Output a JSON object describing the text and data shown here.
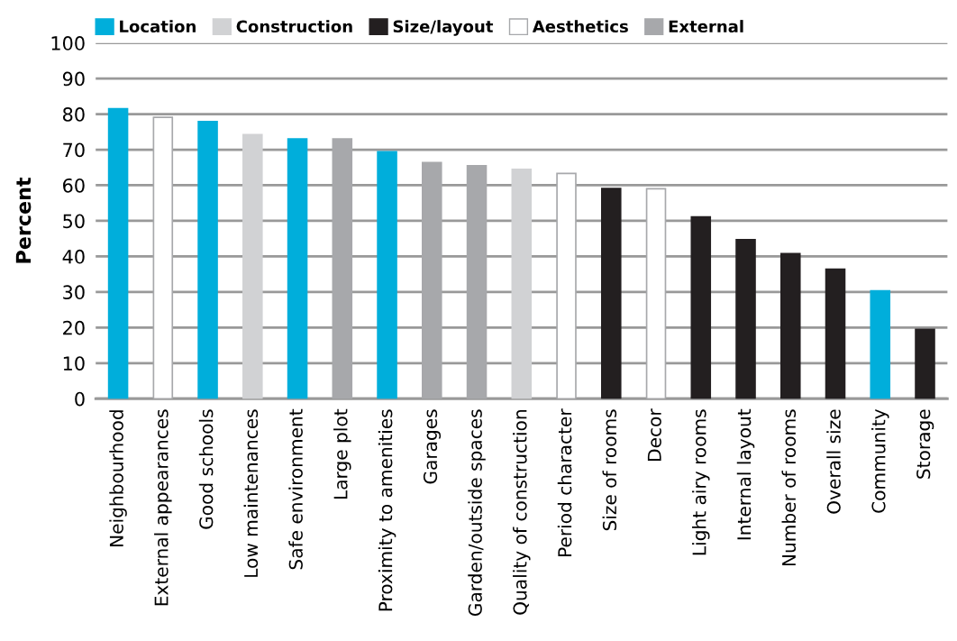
{
  "chart_data": {
    "type": "bar",
    "ylabel": "Percent",
    "categories": [
      "Neighbourhood",
      "External appearances",
      "Good schools",
      "Low maintenances",
      "Safe environment",
      "Large plot",
      "Proximity to amenities",
      "Garages",
      "Garden/outside spaces",
      "Quality of construction",
      "Period character",
      "Size of rooms",
      "Decor",
      "Light airy rooms",
      "Internal layout",
      "Number of rooms",
      "Overall size",
      "Community",
      "Storage"
    ],
    "series": [
      {
        "name": "Location",
        "color": "#00aedb",
        "values": [
          81.5,
          null,
          77.9,
          null,
          73.0,
          null,
          69.4,
          null,
          null,
          null,
          null,
          null,
          null,
          null,
          null,
          null,
          null,
          30.3,
          null
        ]
      },
      {
        "name": "Construction",
        "color": "#d1d2d4",
        "values": [
          null,
          null,
          null,
          74.2,
          null,
          null,
          null,
          null,
          null,
          64.5,
          null,
          null,
          null,
          null,
          null,
          null,
          null,
          null,
          null
        ]
      },
      {
        "name": "Size/layout",
        "color": "#231f20",
        "values": [
          null,
          null,
          null,
          null,
          null,
          null,
          null,
          null,
          null,
          null,
          null,
          59.1,
          null,
          51.1,
          44.7,
          40.8,
          36.4,
          null,
          19.5
        ]
      },
      {
        "name": "Aesthetics",
        "color": "#ffffff",
        "values": [
          null,
          79.1,
          null,
          null,
          null,
          null,
          null,
          null,
          null,
          null,
          63.3,
          null,
          59.0,
          null,
          null,
          null,
          null,
          null,
          null
        ]
      },
      {
        "name": "External",
        "color": "#a7a8ab",
        "values": [
          null,
          null,
          null,
          null,
          null,
          73.0,
          null,
          66.4,
          65.5,
          null,
          null,
          null,
          null,
          null,
          null,
          null,
          null,
          null,
          null
        ]
      }
    ],
    "ylim": [
      0,
      100
    ],
    "yticks": [
      0,
      10,
      20,
      30,
      40,
      50,
      60,
      70,
      80,
      90,
      100
    ],
    "grid": "y",
    "legend": "top left"
  }
}
